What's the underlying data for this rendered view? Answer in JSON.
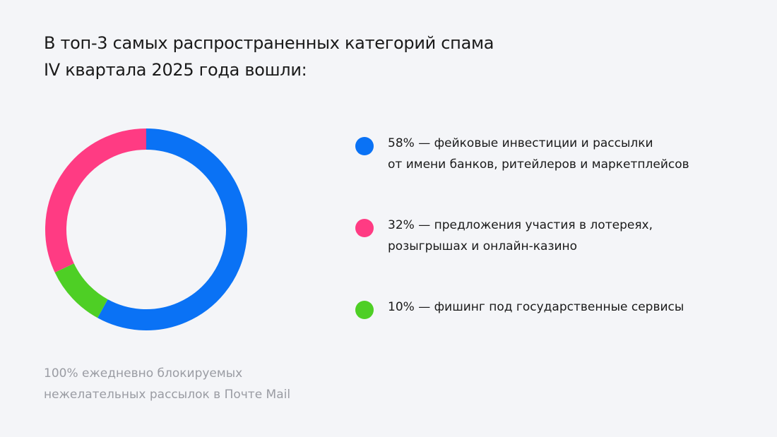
{
  "chart_data": {
    "type": "donut",
    "title": [
      "В топ-3 самых распространенных категорий спама",
      "IV квартала 2025 года вошли:"
    ],
    "categories": [
      [
        "фейковые инвестиции и рассылки",
        "от имени банков, ритейлеров и маркетплейсов"
      ],
      [
        "предложения участия в лотереях,",
        "розыгрышах и онлайн-казино"
      ],
      [
        "фишинг под государственные сервисы"
      ]
    ],
    "values": [
      58,
      32,
      10
    ],
    "value_labels": [
      "58%",
      "32%",
      "10%"
    ],
    "separator": "—",
    "colors": [
      "#0a72f5",
      "#ff3b83",
      "#4ecf25"
    ],
    "draw_order": [
      0,
      2,
      1
    ],
    "note": [
      "100% ежедневно блокируемых",
      "нежелательных рассылок в Почте Mail"
    ]
  }
}
